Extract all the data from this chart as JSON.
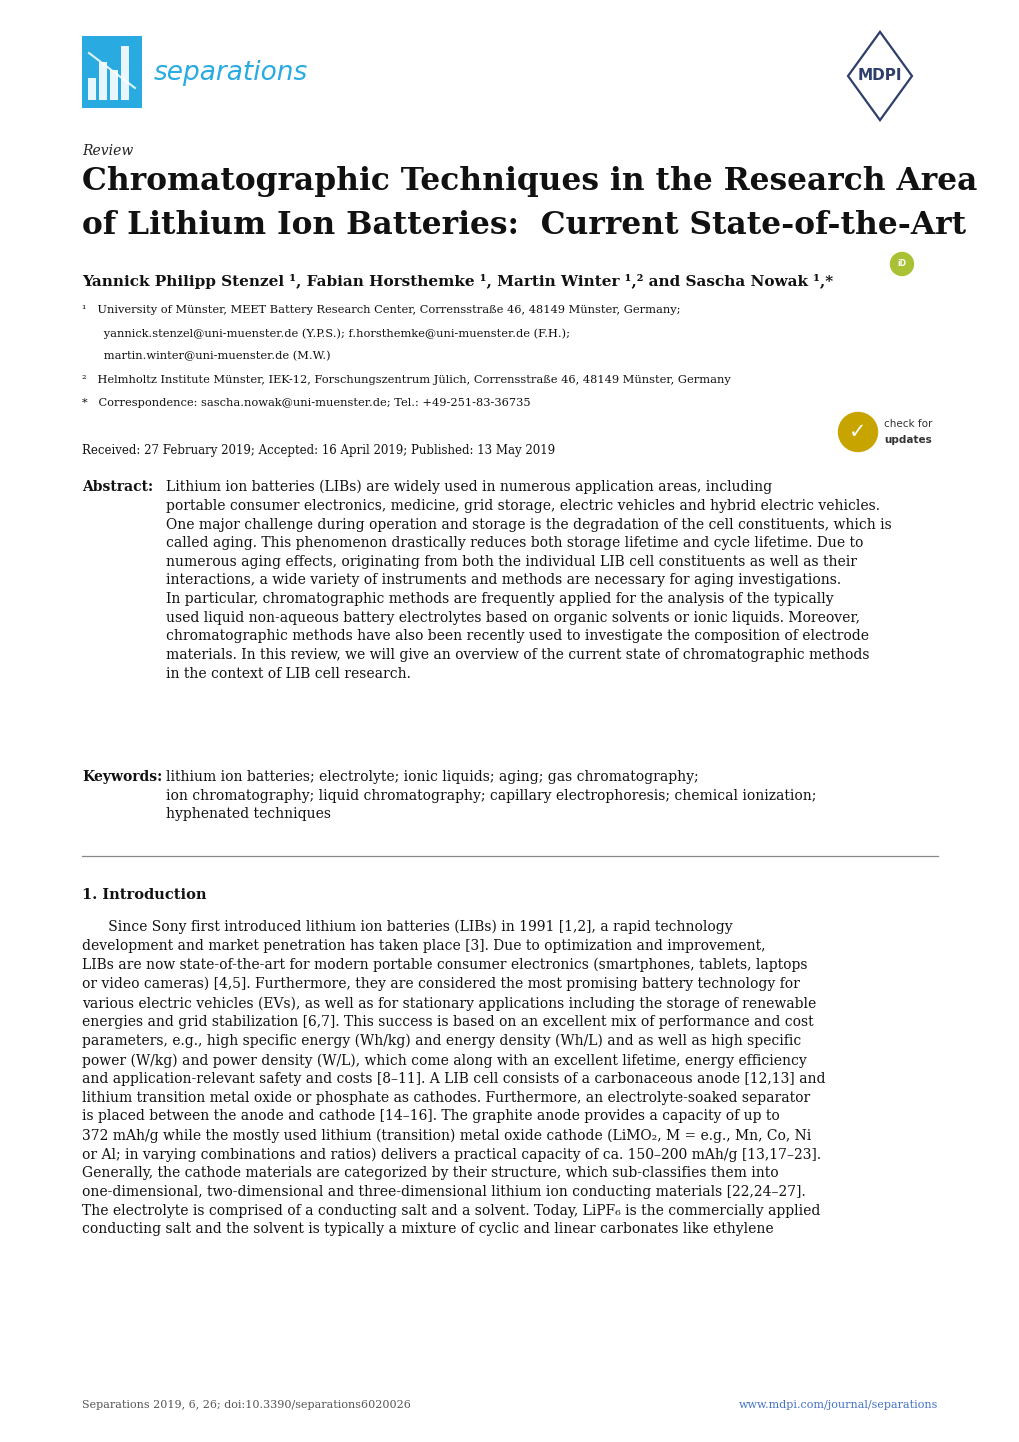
{
  "background_color": "#ffffff",
  "page_width": 10.2,
  "page_height": 14.42,
  "separations_color": "#29abe2",
  "mdpi_color": "#2e3f6e",
  "review_label": "Review",
  "title_line1": "Chromatographic Techniques in the Research Area",
  "title_line2": "of Lithium Ion Batteries:  Current State-of-the-Art",
  "authors_line": "Yannick Philipp Stenzel ¹, Fabian Horsthemke ¹, Martin Winter ¹,² and Sascha Nowak ¹,*",
  "affil1a": "¹   University of Münster, MEET Battery Research Center, Corrensstraße 46, 48149 Münster, Germany;",
  "affil1b": "      yannick.stenzel@uni-muenster.de (Y.P.S.); f.horsthemke@uni-muenster.de (F.H.);",
  "affil1c": "      martin.winter@uni-muenster.de (M.W.)",
  "affil2": "²   Helmholtz Institute Münster, IEK-12, Forschungszentrum Jülich, Corrensstraße 46, 48149 Münster, Germany",
  "affil3": "*   Correspondence: sascha.nowak@uni-muenster.de; Tel.: +49-251-83-36735",
  "received": "Received: 27 February 2019; Accepted: 16 April 2019; Published: 13 May 2019",
  "abstract_label": "Abstract:",
  "abstract_body": "Lithium ion batteries (LIBs) are widely used in numerous application areas, including\nportable consumer electronics, medicine, grid storage, electric vehicles and hybrid electric vehicles.\nOne major challenge during operation and storage is the degradation of the cell constituents, which is\ncalled aging. This phenomenon drastically reduces both storage lifetime and cycle lifetime. Due to\nnumerous aging effects, originating from both the individual LIB cell constituents as well as their\ninteractions, a wide variety of instruments and methods are necessary for aging investigations.\nIn particular, chromatographic methods are frequently applied for the analysis of the typically\nused liquid non-aqueous battery electrolytes based on organic solvents or ionic liquids. Moreover,\nchromatographic methods have also been recently used to investigate the composition of electrode\nmaterials. In this review, we will give an overview of the current state of chromatographic methods\nin the context of LIB cell research.",
  "keywords_label": "Keywords:",
  "keywords_body": "lithium ion batteries; electrolyte; ionic liquids; aging; gas chromatography;\nion chromatography; liquid chromatography; capillary electrophoresis; chemical ionization;\nhyphenated techniques",
  "section1_title": "1. Introduction",
  "intro_para": "      Since Sony first introduced lithium ion batteries (LIBs) in 1991 [1,2], a rapid technology\ndevelopment and market penetration has taken place [3]. Due to optimization and improvement,\nLIBs are now state-of-the-art for modern portable consumer electronics (smartphones, tablets, laptops\nor video cameras) [4,5]. Furthermore, they are considered the most promising battery technology for\nvarious electric vehicles (EVs), as well as for stationary applications including the storage of renewable\nenergies and grid stabilization [6,7]. This success is based on an excellent mix of performance and cost\nparameters, e.g., high specific energy (Wh/kg) and energy density (Wh/L) and as well as high specific\npower (W/kg) and power density (W/L), which come along with an excellent lifetime, energy efficiency\nand application-relevant safety and costs [8–11]. A LIB cell consists of a carbonaceous anode [12,13] and\nlithium transition metal oxide or phosphate as cathodes. Furthermore, an electrolyte-soaked separator\nis placed between the anode and cathode [14–16]. The graphite anode provides a capacity of up to\n372 mAh/g while the mostly used lithium (transition) metal oxide cathode (LiMO₂, M = e.g., Mn, Co, Ni\nor Al; in varying combinations and ratios) delivers a practical capacity of ca. 150–200 mAh/g [13,17–23].\nGenerally, the cathode materials are categorized by their structure, which sub-classifies them into\none-dimensional, two-dimensional and three-dimensional lithium ion conducting materials [22,24–27].\nThe electrolyte is comprised of a conducting salt and a solvent. Today, LiPF₆ is the commercially applied\nconducting salt and the solvent is typically a mixture of cyclic and linear carbonates like ethylene",
  "footer_left": "Separations 2019, 6, 26; doi:10.3390/separations6020026",
  "footer_right": "www.mdpi.com/journal/separations",
  "link_color": "#4472c4",
  "text_color": "#000000",
  "gray_color": "#555555"
}
